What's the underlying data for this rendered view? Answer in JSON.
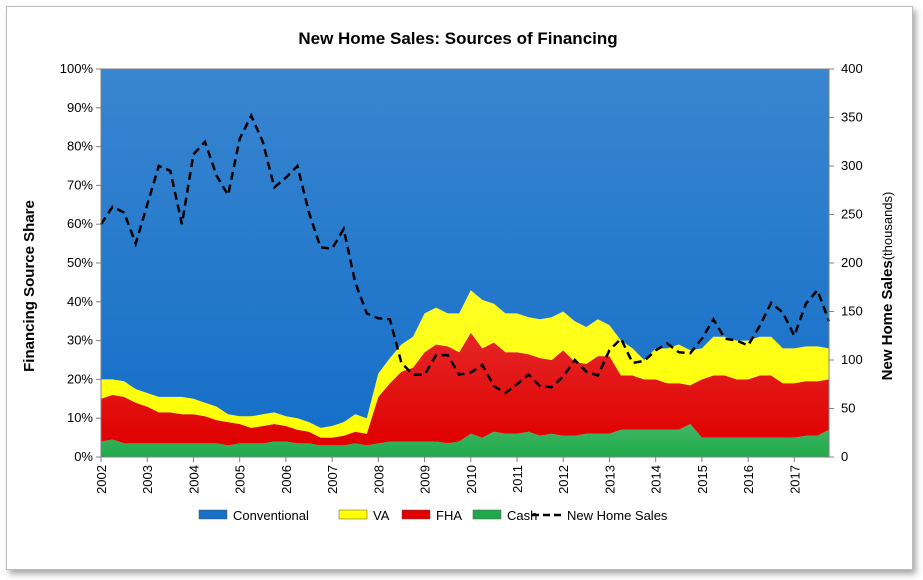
{
  "chart_data": {
    "type": "area",
    "title": "New Home Sales: Sources of Financing",
    "ylabel": "Financing Source Share",
    "y2label_bold": "New Home Sales",
    "y2label_unit": "(thousands)",
    "ylim": [
      0,
      100
    ],
    "y2lim": [
      0,
      400
    ],
    "y_ticks": [
      "0%",
      "10%",
      "20%",
      "30%",
      "40%",
      "50%",
      "60%",
      "70%",
      "80%",
      "90%",
      "100%"
    ],
    "y2_ticks": [
      "0",
      "50",
      "100",
      "150",
      "200",
      "250",
      "300",
      "350",
      "400"
    ],
    "x_ticks": [
      "2002",
      "2003",
      "2004",
      "2005",
      "2006",
      "2007",
      "2008",
      "2009",
      "2010",
      "2011",
      "2012",
      "2013",
      "2014",
      "2015",
      "2016",
      "2017"
    ],
    "x_start": 2002.0,
    "x_end": 2017.75,
    "grid": false,
    "legend_position": "bottom",
    "x": [
      2002.0,
      2002.25,
      2002.5,
      2002.75,
      2003.0,
      2003.25,
      2003.5,
      2003.75,
      2004.0,
      2004.25,
      2004.5,
      2004.75,
      2005.0,
      2005.25,
      2005.5,
      2005.75,
      2006.0,
      2006.25,
      2006.5,
      2006.75,
      2007.0,
      2007.25,
      2007.5,
      2007.75,
      2008.0,
      2008.25,
      2008.5,
      2008.75,
      2009.0,
      2009.25,
      2009.5,
      2009.75,
      2010.0,
      2010.25,
      2010.5,
      2010.75,
      2011.0,
      2011.25,
      2011.5,
      2011.75,
      2012.0,
      2012.25,
      2012.5,
      2012.75,
      2013.0,
      2013.25,
      2013.5,
      2013.75,
      2014.0,
      2014.25,
      2014.5,
      2014.75,
      2015.0,
      2015.25,
      2015.5,
      2015.75,
      2016.0,
      2016.25,
      2016.5,
      2016.75,
      2017.0,
      2017.25,
      2017.5,
      2017.75
    ],
    "series": [
      {
        "name": "Cash",
        "color": "#1faa4a",
        "kind": "stacked-area",
        "values": [
          4,
          4.5,
          3.5,
          3.5,
          3.5,
          3.5,
          3.5,
          3.5,
          3.5,
          3.5,
          3.5,
          3,
          3.5,
          3.5,
          3.5,
          4,
          4,
          3.5,
          3.5,
          3,
          3,
          3,
          3.5,
          3,
          3.5,
          4,
          4,
          4,
          4,
          4,
          3.5,
          4,
          6,
          5,
          6.5,
          6,
          6,
          6.5,
          5.5,
          6,
          5.5,
          5.5,
          6,
          6,
          6,
          7,
          7,
          7,
          7,
          7,
          7,
          8.5,
          5,
          5,
          5,
          5,
          5,
          5,
          5,
          5,
          5,
          5.5,
          5.5,
          7
        ]
      },
      {
        "name": "FHA",
        "color": "#e00000",
        "kind": "stacked-area",
        "values": [
          11,
          11.5,
          12,
          10.5,
          9.5,
          8,
          8,
          7.5,
          7.5,
          7,
          6,
          6,
          5,
          4,
          4.5,
          4.5,
          4,
          3.5,
          3,
          2,
          2,
          2.5,
          3,
          3,
          12,
          15,
          18,
          19,
          23,
          25,
          25,
          23,
          26,
          23,
          23,
          21,
          21,
          20,
          20,
          19,
          22,
          19,
          18,
          20,
          20,
          14,
          14,
          13,
          13,
          12,
          12,
          10,
          15,
          16,
          16,
          15,
          15,
          16,
          16,
          14,
          14,
          14,
          14,
          13
        ]
      },
      {
        "name": "VA",
        "color": "#ffff00",
        "kind": "stacked-area",
        "values": [
          5,
          4,
          4,
          3.5,
          3.5,
          4,
          4,
          4.5,
          4,
          3.5,
          3.5,
          2,
          2,
          3,
          3,
          3,
          2.5,
          3,
          2.5,
          2.5,
          3,
          3.5,
          4.5,
          4,
          6,
          6.5,
          7,
          8,
          10,
          9.5,
          8.5,
          10,
          11,
          12.5,
          10,
          10,
          10,
          9.5,
          10,
          11,
          10,
          10.5,
          9.5,
          9.5,
          8,
          9,
          7,
          5,
          8,
          9,
          10,
          9,
          8,
          10,
          10,
          10,
          10,
          10,
          10,
          9,
          9,
          9,
          9,
          8
        ]
      },
      {
        "name": "Conventional",
        "color": "#1670c8",
        "kind": "stacked-area",
        "values": [
          80,
          80,
          80.5,
          82.5,
          83.5,
          84.5,
          84.5,
          84.5,
          85,
          86,
          87,
          89,
          89.5,
          89.5,
          89,
          88.5,
          89.5,
          90,
          91,
          92.5,
          92,
          91,
          89,
          90,
          78.5,
          74.5,
          71,
          69,
          63,
          61.5,
          63,
          63,
          57,
          59.5,
          60.5,
          63,
          63,
          64,
          64.5,
          64,
          62.5,
          65,
          66.5,
          64.5,
          66,
          70,
          72,
          75,
          72,
          72,
          71,
          72.5,
          72,
          69,
          69,
          70,
          70,
          69,
          69,
          72,
          72,
          71.5,
          71.5,
          72
        ]
      },
      {
        "name": "New Home Sales",
        "color": "#000000",
        "kind": "line-secondary",
        "values": [
          240,
          258,
          252,
          220,
          260,
          300,
          295,
          240,
          312,
          325,
          290,
          270,
          328,
          352,
          325,
          278,
          288,
          300,
          252,
          216,
          215,
          235,
          180,
          148,
          143,
          142,
          97,
          85,
          85,
          105,
          105,
          85,
          87,
          95,
          73,
          66,
          75,
          85,
          73,
          72,
          83,
          100,
          88,
          84,
          110,
          122,
          97,
          99,
          110,
          117,
          108,
          107,
          122,
          142,
          122,
          120,
          115,
          135,
          159,
          149,
          125,
          158,
          172,
          140
        ]
      }
    ]
  }
}
